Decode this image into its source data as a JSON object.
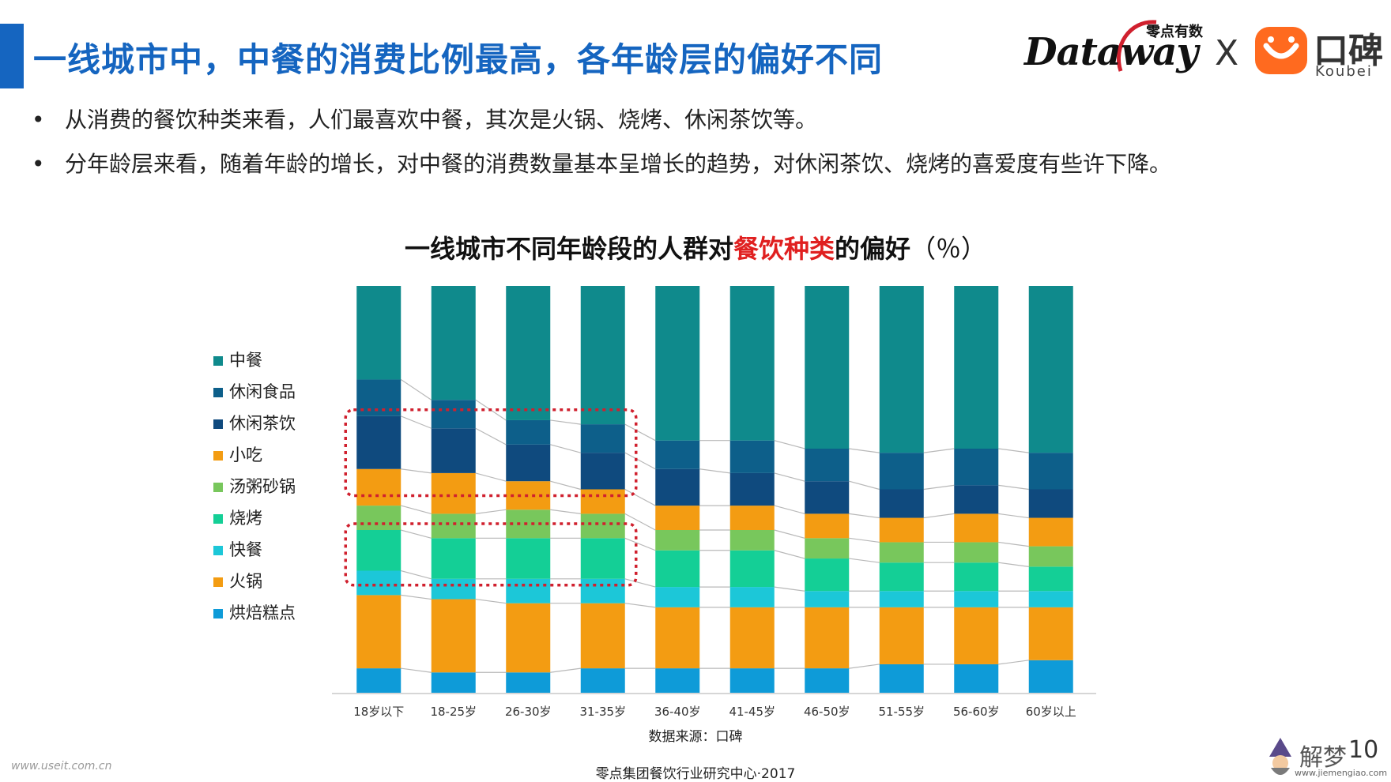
{
  "slide": {
    "title": "一线城市中，中餐的消费比例最高，各年龄层的偏好不同",
    "bullets": [
      "从消费的餐饮种类来看，人们最喜欢中餐，其次是火锅、烧烤、休闲茶饮等。",
      "分年龄层来看，随着年龄的增长，对中餐的消费数量基本呈增长的趋势，对休闲茶饮、烧烤的喜爱度有些许下降。"
    ],
    "bullet_marker": "•",
    "source": "数据来源：口碑",
    "footer": "零点集团餐饮行业研究中心·2017",
    "page_number": "10"
  },
  "logos": {
    "dataway_sub": "零点有数",
    "dataway": "Dataway",
    "x": "X",
    "koubei_cn": "口碑",
    "koubei_en": "Koubei"
  },
  "watermarks": {
    "left": "www.useit.com.cn",
    "right_cn": "解梦",
    "right_en": "www.jiemengiao.com"
  },
  "chart_data": {
    "type": "bar",
    "stacked": true,
    "percent": true,
    "title_parts": {
      "before": "一线城市不同年龄段的人群对",
      "highlight": "餐饮种类",
      "after": "的偏好",
      "unit": "（％）"
    },
    "categories": [
      "18岁以下",
      "18-25岁",
      "26-30岁",
      "31-35岁",
      "36-40岁",
      "41-45岁",
      "46-50岁",
      "51-55岁",
      "56-60岁",
      "60岁以上"
    ],
    "series": [
      {
        "name": "烘焙糕点",
        "color": "#0e9bd8",
        "values": [
          6,
          5,
          5,
          6,
          6,
          6,
          6,
          7,
          7,
          8
        ]
      },
      {
        "name": "火锅",
        "color": "#f39c12",
        "values": [
          18,
          18,
          17,
          16,
          15,
          15,
          15,
          14,
          14,
          13
        ]
      },
      {
        "name": "快餐",
        "color": "#1cc7d8",
        "values": [
          6,
          5,
          6,
          6,
          5,
          5,
          4,
          4,
          4,
          4
        ]
      },
      {
        "name": "烧烤",
        "color": "#14cf96",
        "values": [
          10,
          10,
          10,
          10,
          9,
          9,
          8,
          7,
          7,
          6
        ]
      },
      {
        "name": "汤粥砂锅",
        "color": "#78c75c",
        "values": [
          6,
          6,
          7,
          6,
          5,
          5,
          5,
          5,
          5,
          5
        ]
      },
      {
        "name": "小吃",
        "color": "#f39c12",
        "values": [
          9,
          10,
          7,
          6,
          6,
          6,
          6,
          6,
          7,
          7
        ]
      },
      {
        "name": "休闲茶饮",
        "color": "#0f4a7e",
        "values": [
          13,
          11,
          9,
          9,
          9,
          8,
          8,
          7,
          7,
          7
        ]
      },
      {
        "name": "休闲食品",
        "color": "#0d5f8a",
        "values": [
          9,
          7,
          6,
          7,
          7,
          8,
          8,
          9,
          9,
          9
        ]
      },
      {
        "name": "中餐",
        "color": "#0f8a8c",
        "values": [
          23,
          28,
          33,
          34,
          38,
          38,
          40,
          41,
          40,
          41
        ]
      }
    ],
    "ylim": [
      0,
      100
    ],
    "grid": false,
    "legend_position": "left",
    "highlight_boxes": [
      {
        "from": "18岁以下",
        "to": "31-35岁",
        "series": "休闲茶饮"
      },
      {
        "from": "18岁以下",
        "to": "31-35岁",
        "series": "烧烤"
      }
    ]
  }
}
